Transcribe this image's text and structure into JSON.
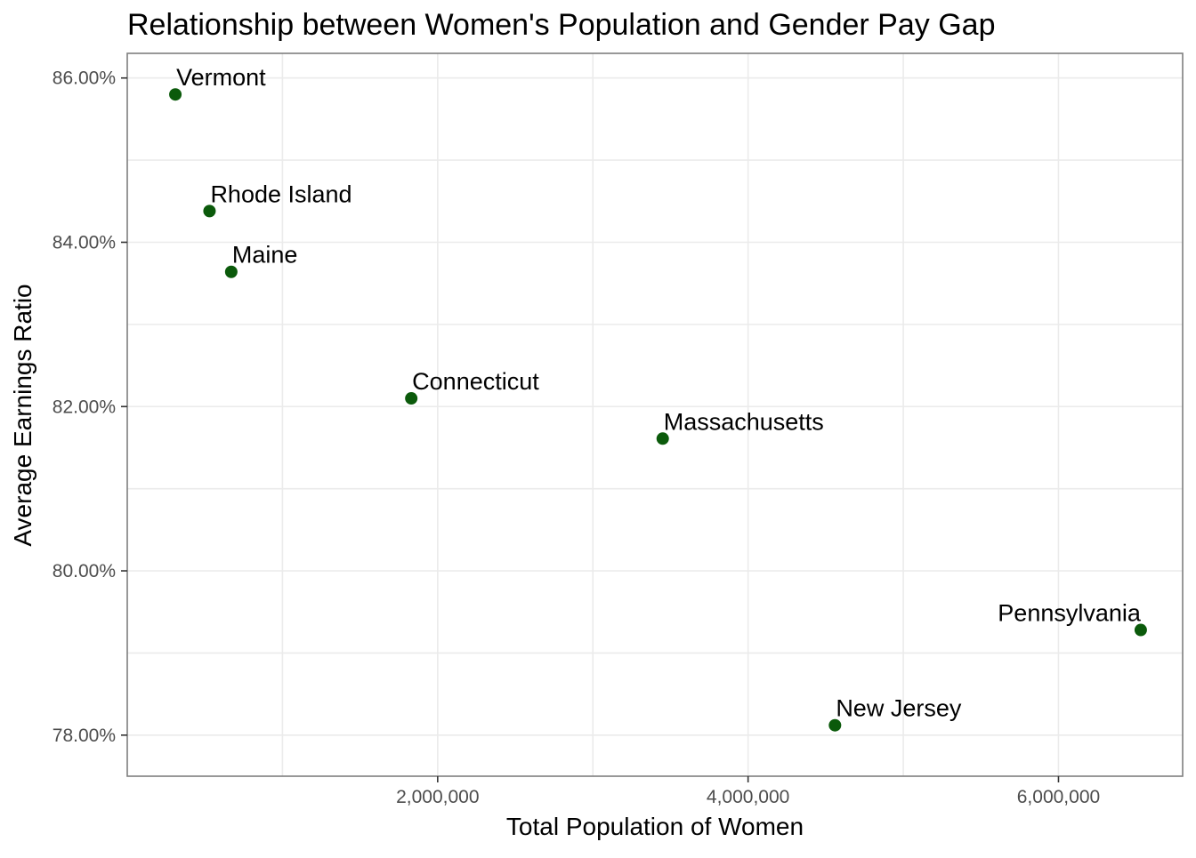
{
  "chart_data": {
    "type": "scatter",
    "title": "Relationship between Women's Population and Gender Pay Gap",
    "xlabel": "Total Population of Women",
    "ylabel": "Average Earnings Ratio",
    "xlim": [
      0,
      6800000
    ],
    "ylim": [
      77.5,
      86.3
    ],
    "x_ticks": [
      2000000,
      4000000,
      6000000
    ],
    "x_tick_labels": [
      "2,000,000",
      "4,000,000",
      "6,000,000"
    ],
    "y_ticks": [
      78,
      80,
      82,
      84,
      86
    ],
    "y_tick_labels": [
      "78.00%",
      "80.00%",
      "82.00%",
      "84.00%",
      "86.00%"
    ],
    "grid": true,
    "point_color": "#0b5a0b",
    "points": [
      {
        "label": "Vermont",
        "x": 310000,
        "y": 85.8
      },
      {
        "label": "Rhode Island",
        "x": 530000,
        "y": 84.38
      },
      {
        "label": "Maine",
        "x": 670000,
        "y": 83.64
      },
      {
        "label": "Connecticut",
        "x": 1830000,
        "y": 82.1
      },
      {
        "label": "Massachusetts",
        "x": 3450000,
        "y": 81.61
      },
      {
        "label": "Pennsylvania",
        "x": 6530000,
        "y": 79.28
      },
      {
        "label": "New Jersey",
        "x": 4560000,
        "y": 78.12
      }
    ]
  }
}
